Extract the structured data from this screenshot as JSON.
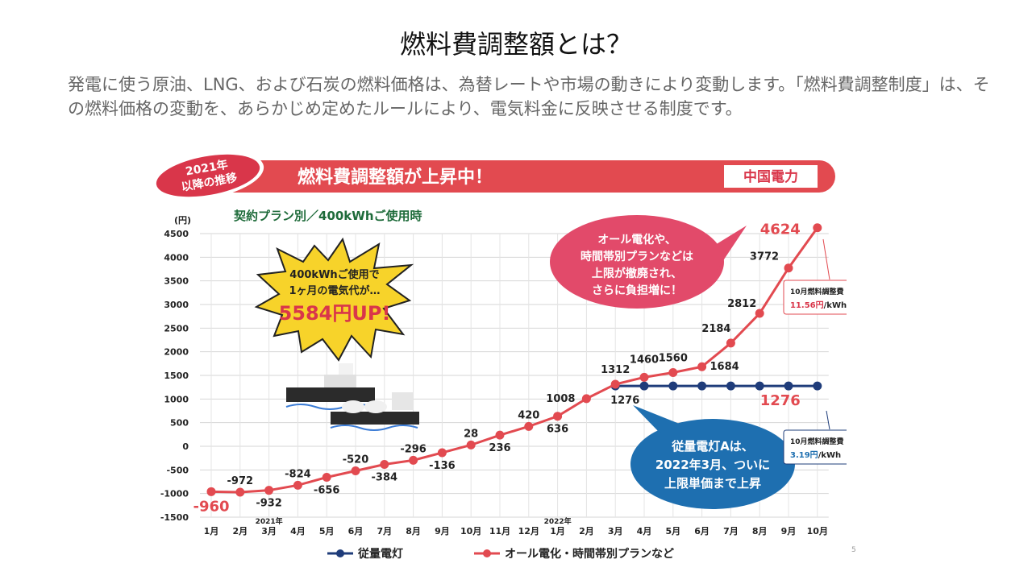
{
  "slide": {
    "title": "燃料費調整額とは？",
    "description": "発電に使う原油、LNG、および石炭の燃料価格は、為替レートや市場の動きにより変動します。「燃料費調整制度」は、その燃料価格の変動を、あらかじめ定めたルールにより、電気料金に反映させる制度です。",
    "page_number": "5"
  },
  "banner": {
    "badge": [
      "2021年",
      "以降の推移"
    ],
    "headline": "燃料費調整額が上昇中！",
    "company": "中国電力"
  },
  "chart_data": {
    "type": "line",
    "title": "燃料費調整額が上昇中！",
    "subtitle": "契約プラン別／400kWhご使用時",
    "ylabel": "(円)",
    "ylim": [
      -1500,
      4500
    ],
    "yticks": [
      4500,
      4000,
      3500,
      3000,
      2500,
      2000,
      1500,
      1000,
      500,
      0,
      -500,
      -1000,
      -1500
    ],
    "categories": [
      "1月",
      "2月",
      "3月",
      "4月",
      "5月",
      "6月",
      "7月",
      "8月",
      "9月",
      "10月",
      "11月",
      "12月",
      "1月",
      "2月",
      "3月",
      "4月",
      "5月",
      "6月",
      "7月",
      "8月",
      "9月",
      "10月"
    ],
    "year_markers": [
      {
        "index": 2,
        "label": "2021年"
      },
      {
        "index": 12,
        "label": "2022年"
      }
    ],
    "series": [
      {
        "name": "オール電化・時間帯別プランなど",
        "color": "#e24a50",
        "values": [
          -960,
          -972,
          -932,
          -824,
          -656,
          -520,
          -384,
          -296,
          -136,
          28,
          236,
          420,
          636,
          1008,
          1312,
          1460,
          1560,
          1684,
          2184,
          2812,
          3772,
          4624
        ]
      },
      {
        "name": "従量電灯",
        "color": "#1f3c7a",
        "values": [
          null,
          null,
          null,
          null,
          null,
          null,
          null,
          null,
          null,
          null,
          null,
          null,
          null,
          null,
          1276,
          1276,
          1276,
          1276,
          1276,
          1276,
          1276,
          1276
        ]
      }
    ],
    "legend_position": "bottom",
    "red_labels": [
      "-960",
      "-972",
      "-932",
      "-824",
      "-656",
      "-520",
      "-384",
      "-296",
      "-136",
      "28",
      "236",
      "420",
      "636",
      "1008",
      "1312",
      "1460",
      "1560",
      "1684",
      "2184",
      "2812",
      "3772",
      "4624"
    ],
    "blue_labels": [
      "1276",
      "1276"
    ],
    "annotations": {
      "burst": [
        "400kWhご使用で",
        "1ヶ月の電気代が…",
        "5584円UP!"
      ],
      "pink_bubble": [
        "オール電化や、",
        "時間帯別プランなどは",
        "上限が撤廃され、",
        "さらに負担増に！"
      ],
      "blue_bubble": [
        "従量電灯Aは、",
        "2022年3月、ついに",
        "上限単価まで上昇"
      ],
      "box_red": [
        "10月燃料調整費",
        "11.56円",
        "/kWh"
      ],
      "box_blue": [
        "10月燃料調整費",
        "3.19円",
        "/kWh"
      ]
    }
  }
}
